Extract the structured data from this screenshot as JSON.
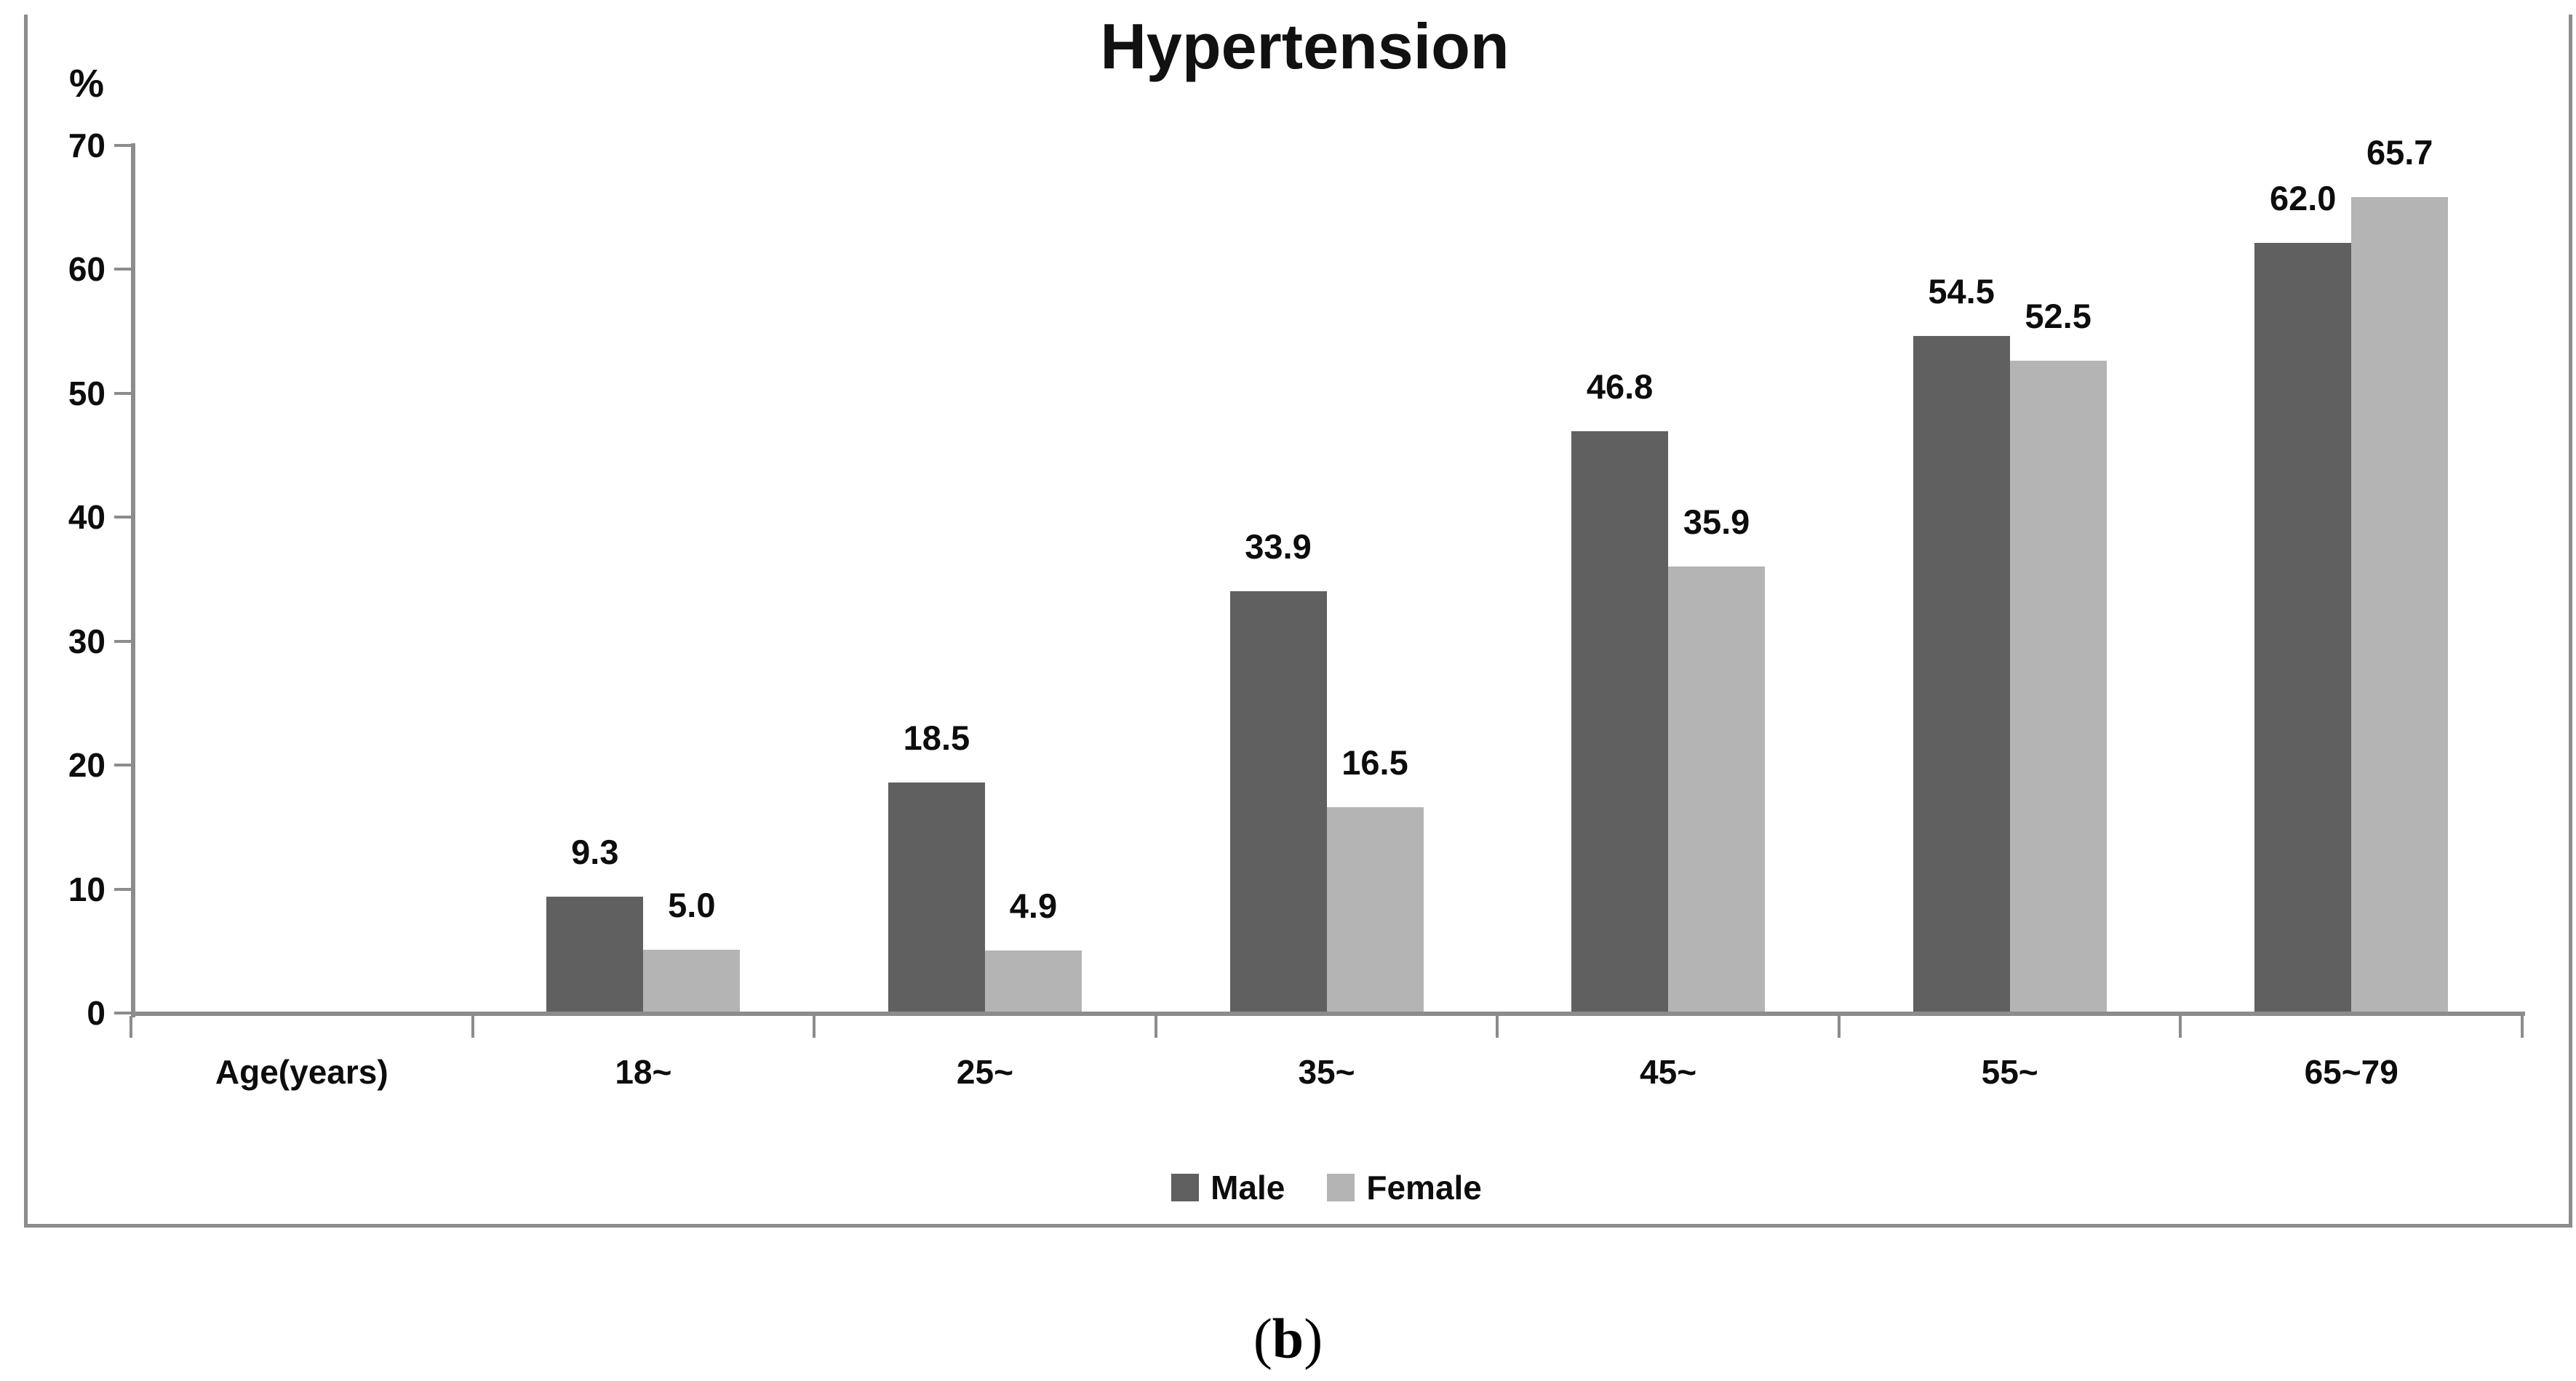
{
  "figure": {
    "title": "Hypertension",
    "y_unit_label": "%",
    "caption_open": "(",
    "caption_letter": "b",
    "caption_close": ")"
  },
  "chart_data": {
    "type": "bar",
    "title": "Hypertension",
    "xlabel": "",
    "ylabel": "%",
    "ylim": [
      0,
      70
    ],
    "yticks": [
      0,
      10,
      20,
      30,
      40,
      50,
      60,
      70
    ],
    "grid": false,
    "legend_position": "bottom-center",
    "data_labels": true,
    "categories": [
      "Age(years)",
      "18~",
      "25~",
      "35~",
      "45~",
      "55~",
      "65~79"
    ],
    "series": [
      {
        "name": "Male",
        "color": "#606060",
        "values": [
          null,
          9.3,
          18.5,
          33.9,
          46.8,
          54.5,
          62.0
        ],
        "labels": [
          "",
          "9.3",
          "18.5",
          "33.9",
          "46.8",
          "54.5",
          "62.0"
        ]
      },
      {
        "name": "Female",
        "color": "#b4b4b4",
        "values": [
          null,
          5.0,
          4.9,
          16.5,
          35.9,
          52.5,
          65.7
        ],
        "labels": [
          "",
          "5.0",
          "4.9",
          "16.5",
          "35.9",
          "52.5",
          "65.7"
        ]
      }
    ],
    "axis_color": "#8c8c8c",
    "text_color": "#0d0d0d"
  }
}
